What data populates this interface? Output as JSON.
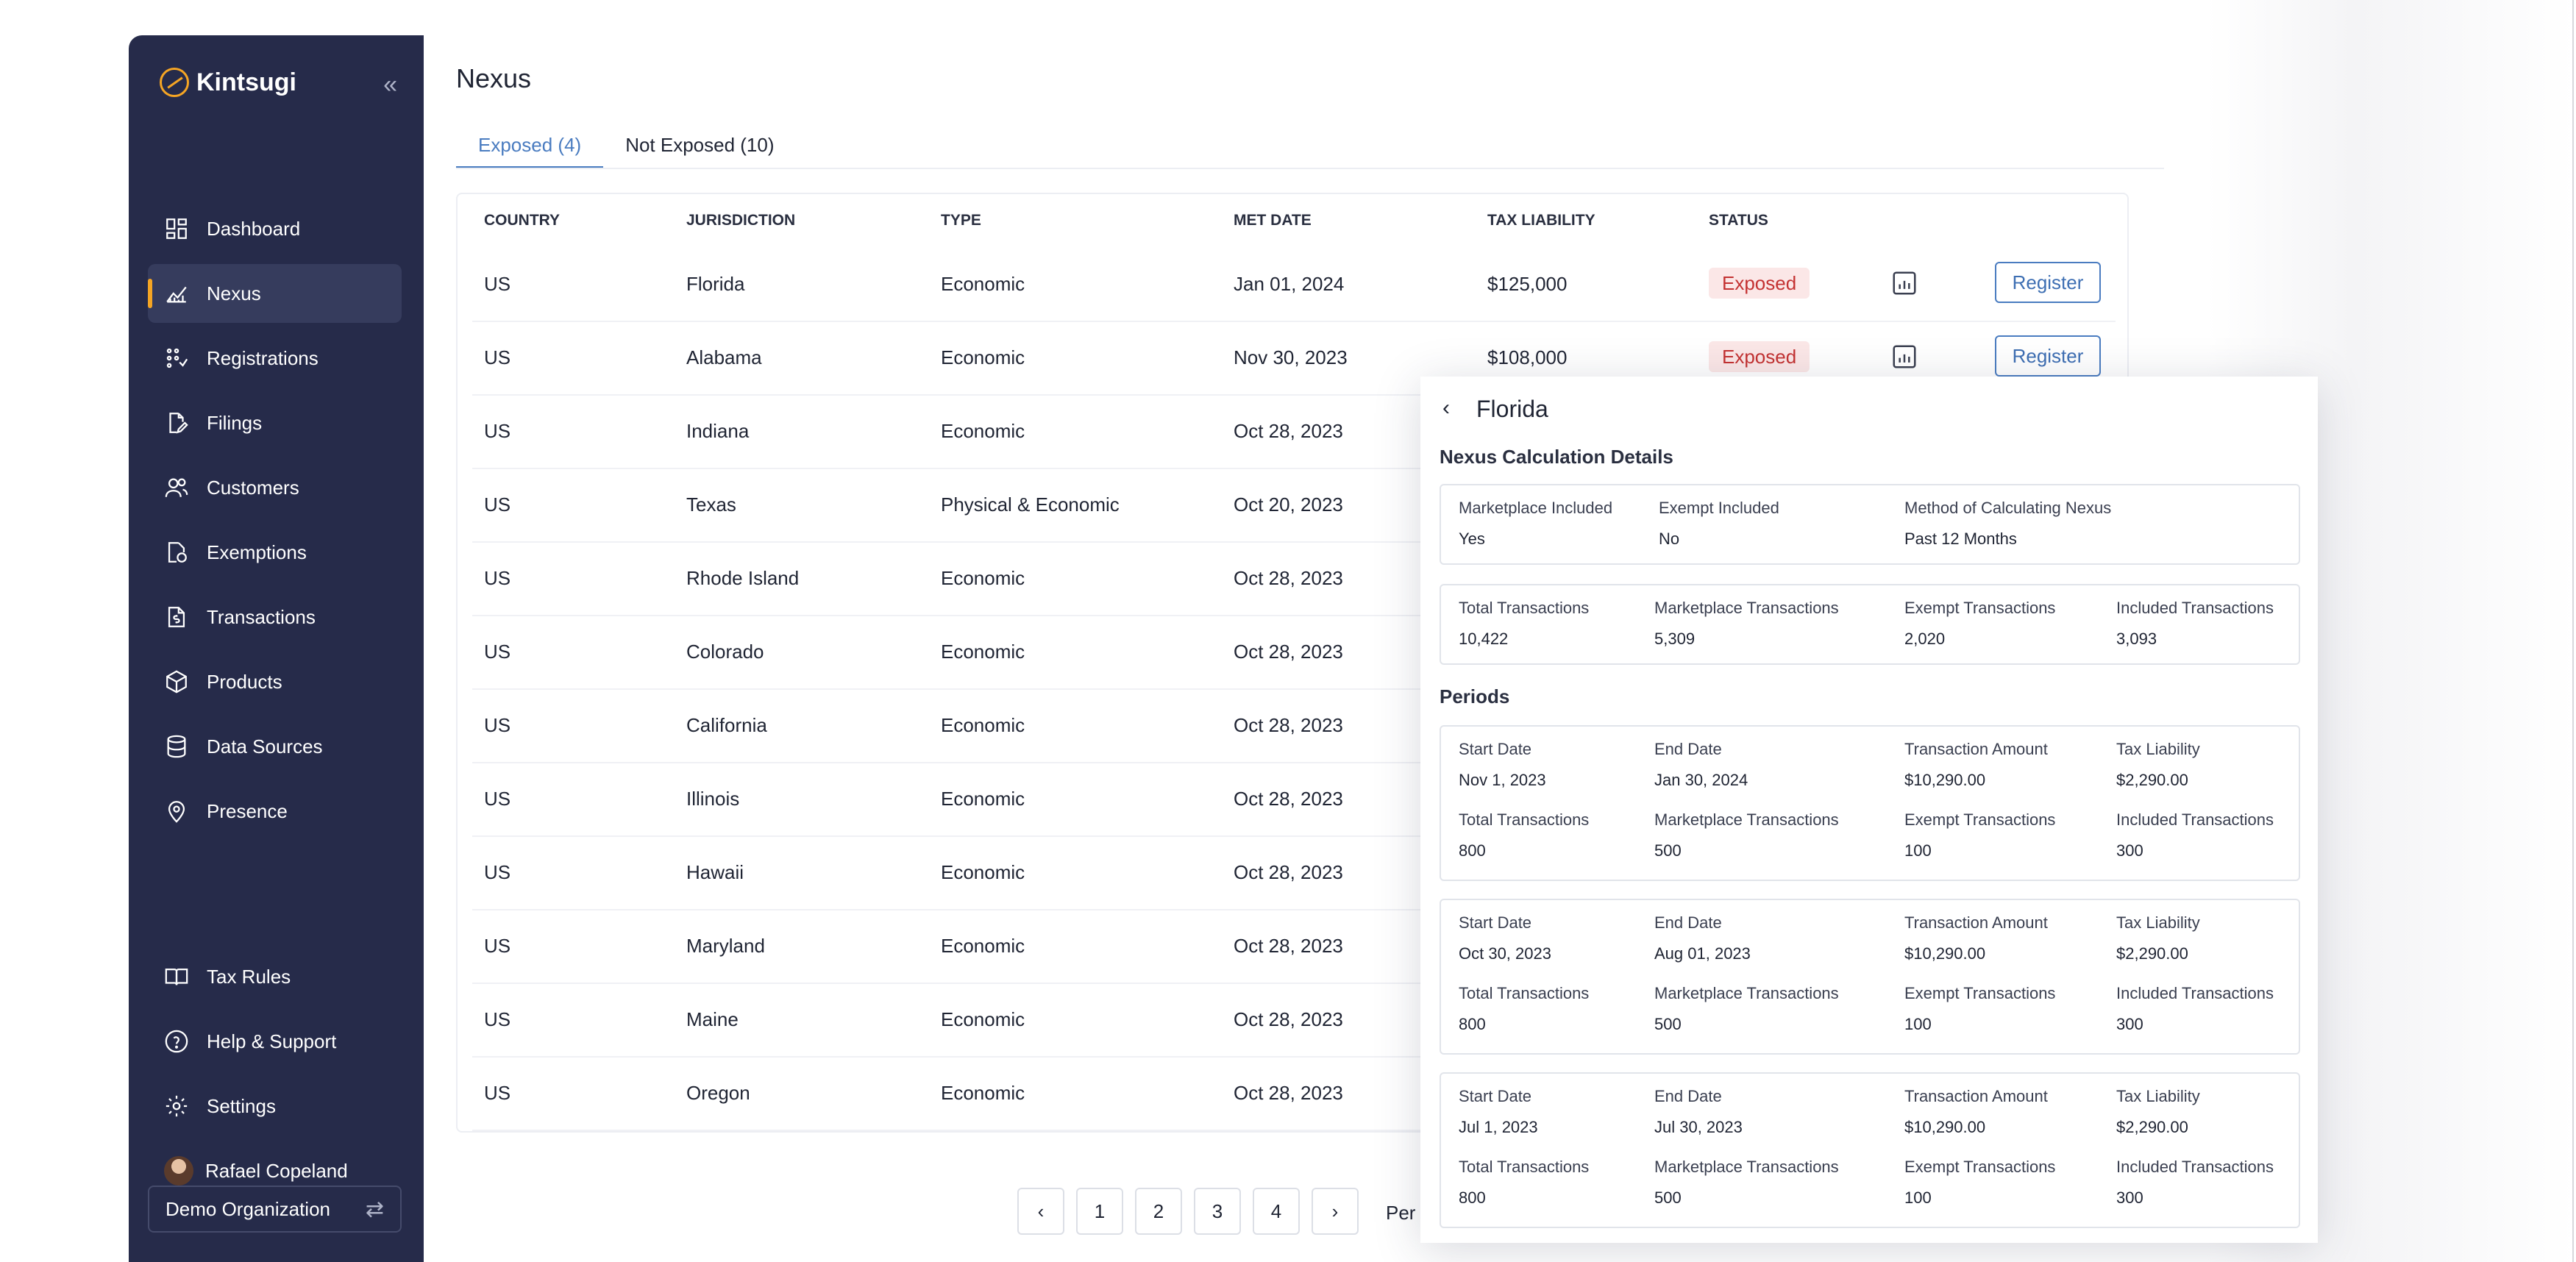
{
  "app": {
    "brand": "Kintsugi",
    "collapse_glyph": "«",
    "colors": {
      "sidebar": "#262b4a",
      "accent": "#f5a524",
      "link": "#4a7cc0",
      "exposed_bg": "#fbe7e7",
      "exposed_text": "#c43232"
    }
  },
  "sidebar": {
    "items": [
      {
        "label": "Dashboard",
        "icon": "dashboard-icon"
      },
      {
        "label": "Nexus",
        "icon": "chart-line-icon",
        "active": true
      },
      {
        "label": "Registrations",
        "icon": "registrations-icon"
      },
      {
        "label": "Filings",
        "icon": "file-edit-icon"
      },
      {
        "label": "Customers",
        "icon": "users-icon"
      },
      {
        "label": "Exemptions",
        "icon": "file-badge-icon"
      },
      {
        "label": "Transactions",
        "icon": "receipt-dollar-icon"
      },
      {
        "label": "Products",
        "icon": "box-icon"
      },
      {
        "label": "Data Sources",
        "icon": "database-icon"
      },
      {
        "label": "Presence",
        "icon": "map-pin-icon"
      }
    ],
    "bottom_items": [
      {
        "label": "Tax Rules",
        "icon": "book-icon"
      },
      {
        "label": "Help & Support",
        "icon": "help-icon"
      },
      {
        "label": "Settings",
        "icon": "gear-icon"
      }
    ],
    "user_name": "Rafael Copeland",
    "org_name": "Demo Organization",
    "org_switch_glyph": "⇄"
  },
  "main": {
    "title": "Nexus",
    "tabs": [
      {
        "label": "Exposed (4)",
        "active": true
      },
      {
        "label": "Not Exposed (10)",
        "active": false
      }
    ],
    "columns": [
      "COUNTRY",
      "JURISDICTION",
      "TYPE",
      "MET DATE",
      "TAX LIABILITY",
      "STATUS"
    ],
    "rows": [
      {
        "country": "US",
        "jurisdiction": "Florida",
        "type": "Economic",
        "met_date": "Jan 01, 2024",
        "tax_liability": "$125,000",
        "status": "Exposed",
        "action": "Register"
      },
      {
        "country": "US",
        "jurisdiction": "Alabama",
        "type": "Economic",
        "met_date": "Nov 30, 2023",
        "tax_liability": "$108,000",
        "status": "Exposed",
        "action": "Register"
      },
      {
        "country": "US",
        "jurisdiction": "Indiana",
        "type": "Economic",
        "met_date": "Oct 28, 2023"
      },
      {
        "country": "US",
        "jurisdiction": "Texas",
        "type": "Physical & Economic",
        "met_date": "Oct 20, 2023"
      },
      {
        "country": "US",
        "jurisdiction": "Rhode Island",
        "type": "Economic",
        "met_date": "Oct 28, 2023"
      },
      {
        "country": "US",
        "jurisdiction": "Colorado",
        "type": "Economic",
        "met_date": "Oct 28, 2023"
      },
      {
        "country": "US",
        "jurisdiction": "California",
        "type": "Economic",
        "met_date": "Oct 28, 2023"
      },
      {
        "country": "US",
        "jurisdiction": "Illinois",
        "type": "Economic",
        "met_date": "Oct 28, 2023"
      },
      {
        "country": "US",
        "jurisdiction": "Hawaii",
        "type": "Economic",
        "met_date": "Oct 28, 2023"
      },
      {
        "country": "US",
        "jurisdiction": "Maryland",
        "type": "Economic",
        "met_date": "Oct 28, 2023"
      },
      {
        "country": "US",
        "jurisdiction": "Maine",
        "type": "Economic",
        "met_date": "Oct 28, 2023"
      },
      {
        "country": "US",
        "jurisdiction": "Oregon",
        "type": "Economic",
        "met_date": "Oct 28, 2023"
      }
    ],
    "pagination": {
      "pages": [
        "1",
        "2",
        "3",
        "4"
      ],
      "prev_glyph": "‹",
      "next_glyph": "›",
      "per_page_label": "Per P"
    }
  },
  "panel": {
    "back_glyph": "‹",
    "title": "Florida",
    "calc_title": "Nexus Calculation Details",
    "calc": [
      {
        "label": "Marketplace Included",
        "value": "Yes"
      },
      {
        "label": "Exempt Included",
        "value": "No"
      },
      {
        "label": "Method of Calculating Nexus",
        "value": "Past 12 Months"
      }
    ],
    "totals": [
      {
        "label": "Total Transactions",
        "value": "10,422"
      },
      {
        "label": "Marketplace Transactions",
        "value": "5,309"
      },
      {
        "label": "Exempt Transactions",
        "value": "2,020"
      },
      {
        "label": "Included Transactions",
        "value": "3,093"
      }
    ],
    "periods_title": "Periods",
    "periods": [
      {
        "row1": [
          {
            "label": "Start Date",
            "value": "Nov 1, 2023"
          },
          {
            "label": "End Date",
            "value": "Jan 30, 2024"
          },
          {
            "label": "Transaction Amount",
            "value": "$10,290.00"
          },
          {
            "label": "Tax Liability",
            "value": "$2,290.00"
          }
        ],
        "row2": [
          {
            "label": "Total Transactions",
            "value": "800"
          },
          {
            "label": "Marketplace Transactions",
            "value": "500"
          },
          {
            "label": "Exempt Transactions",
            "value": "100"
          },
          {
            "label": "Included Transactions",
            "value": "300"
          }
        ]
      },
      {
        "row1": [
          {
            "label": "Start Date",
            "value": "Oct 30, 2023"
          },
          {
            "label": "End Date",
            "value": "Aug 01, 2023"
          },
          {
            "label": "Transaction Amount",
            "value": "$10,290.00"
          },
          {
            "label": "Tax Liability",
            "value": "$2,290.00"
          }
        ],
        "row2": [
          {
            "label": "Total Transactions",
            "value": "800"
          },
          {
            "label": "Marketplace Transactions",
            "value": "500"
          },
          {
            "label": "Exempt Transactions",
            "value": "100"
          },
          {
            "label": "Included Transactions",
            "value": "300"
          }
        ]
      },
      {
        "row1": [
          {
            "label": "Start Date",
            "value": "Jul 1, 2023"
          },
          {
            "label": "End Date",
            "value": "Jul 30, 2023"
          },
          {
            "label": "Transaction Amount",
            "value": "$10,290.00"
          },
          {
            "label": "Tax Liability",
            "value": "$2,290.00"
          }
        ],
        "row2": [
          {
            "label": "Total Transactions",
            "value": "800"
          },
          {
            "label": "Marketplace Transactions",
            "value": "500"
          },
          {
            "label": "Exempt Transactions",
            "value": "100"
          },
          {
            "label": "Included Transactions",
            "value": "300"
          }
        ]
      }
    ]
  }
}
